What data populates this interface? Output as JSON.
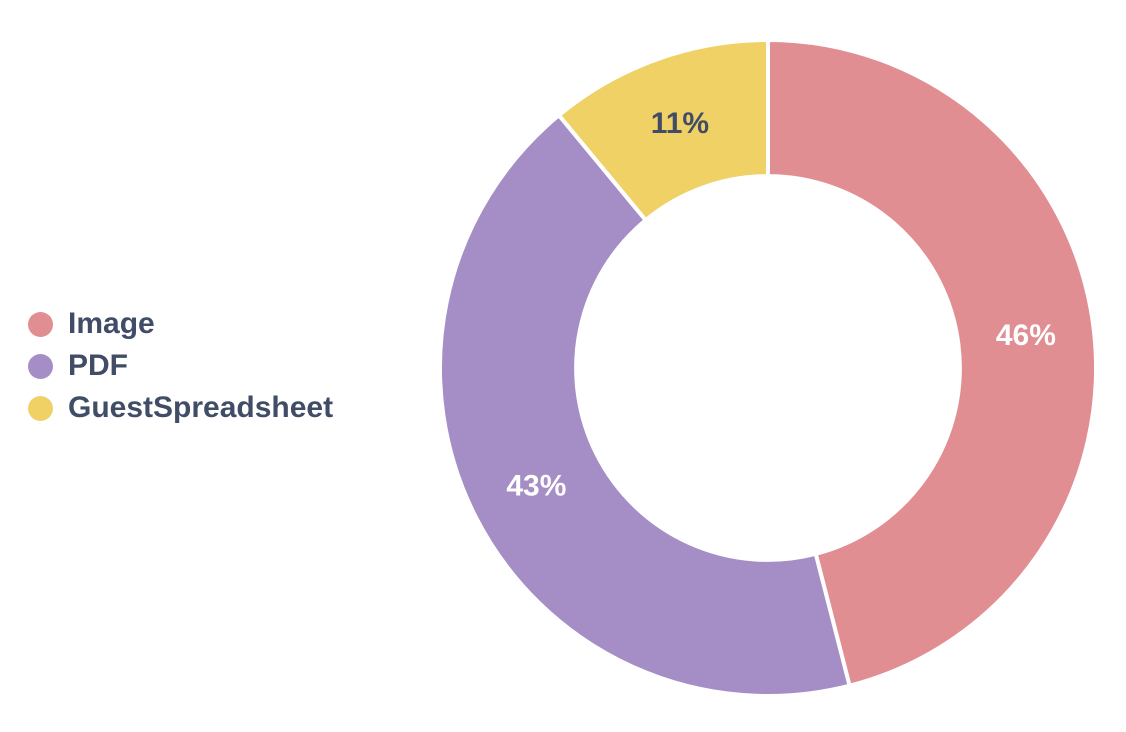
{
  "chart_data": {
    "type": "pie",
    "subtype": "donut",
    "categories": [
      "Image",
      "PDF",
      "GuestSpreadsheet"
    ],
    "values": [
      46,
      43,
      11
    ],
    "slice_labels": [
      "46%",
      "43%",
      "11%"
    ],
    "colors": [
      "#E08E92",
      "#A58DC6",
      "#EFD166"
    ],
    "slice_label_colors": [
      "#FFFFFF",
      "#FFFFFF",
      "#414D66"
    ],
    "legend_position": "left",
    "legend_text_color": "#414D66",
    "separator_color": "#FFFFFF",
    "background": "#FFFFFF",
    "start_angle_deg": 0,
    "direction": "clockwise",
    "inner_radius_ratio": 0.585
  }
}
